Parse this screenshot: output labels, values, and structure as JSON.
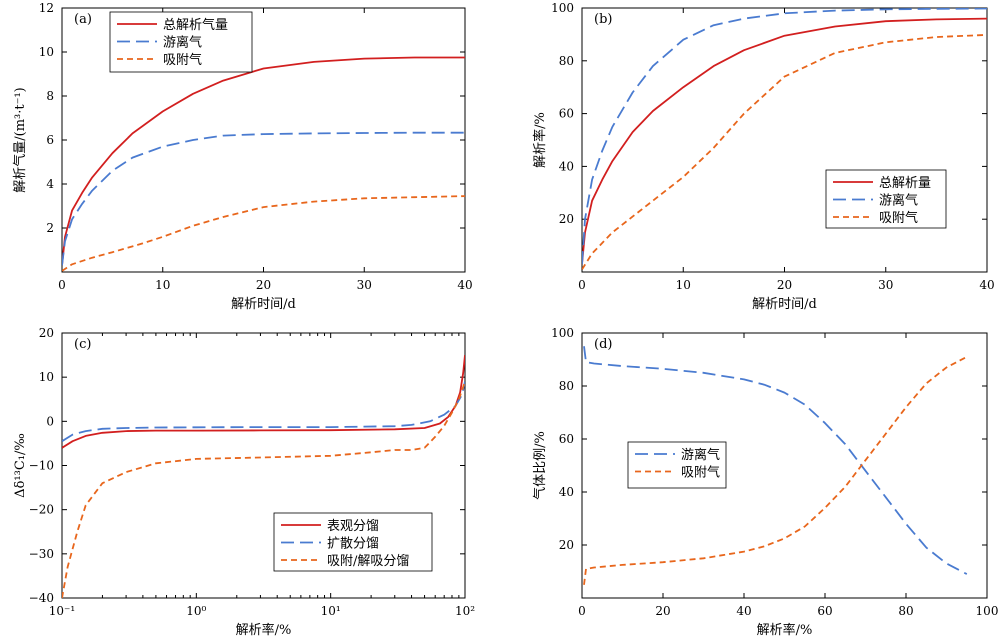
{
  "chart_data": [
    {
      "type": "line",
      "panel_label": "(a)",
      "xlabel": "解析时间/d",
      "ylabel": "解析气量/(m³·t⁻¹)",
      "xlim": [
        0,
        40
      ],
      "ylim": [
        0,
        12
      ],
      "xticks": [
        0,
        10,
        20,
        30,
        40
      ],
      "yticks": [
        2,
        4,
        6,
        8,
        10,
        12
      ],
      "legend": "top-left",
      "series": [
        {
          "name": "总解析气量",
          "color": "#d21f1f",
          "dash": "solid",
          "x": [
            0,
            0.3,
            1,
            2,
            3,
            5,
            7,
            10,
            13,
            16,
            20,
            25,
            30,
            35,
            40
          ],
          "y": [
            0.3,
            1.6,
            2.8,
            3.6,
            4.3,
            5.4,
            6.3,
            7.3,
            8.1,
            8.7,
            9.25,
            9.55,
            9.7,
            9.75,
            9.75
          ]
        },
        {
          "name": "游离气",
          "color": "#4a7bd0",
          "dash": "long",
          "x": [
            0,
            0.3,
            1,
            2,
            3,
            5,
            7,
            10,
            13,
            16,
            20,
            25,
            30,
            35,
            40
          ],
          "y": [
            0.3,
            1.4,
            2.4,
            3.1,
            3.7,
            4.6,
            5.2,
            5.7,
            6.0,
            6.2,
            6.27,
            6.3,
            6.32,
            6.33,
            6.33
          ]
        },
        {
          "name": "吸附气",
          "color": "#e8661c",
          "dash": "short",
          "x": [
            0,
            1,
            3,
            5,
            8,
            10,
            13,
            16,
            20,
            25,
            30,
            35,
            40
          ],
          "y": [
            0.05,
            0.35,
            0.65,
            0.9,
            1.3,
            1.6,
            2.1,
            2.5,
            2.95,
            3.2,
            3.35,
            3.4,
            3.45
          ]
        }
      ]
    },
    {
      "type": "line",
      "panel_label": "(b)",
      "xlabel": "解析时间/d",
      "ylabel": "解析率/%",
      "xlim": [
        0,
        40
      ],
      "ylim": [
        0,
        100
      ],
      "xticks": [
        0,
        10,
        20,
        30,
        40
      ],
      "yticks": [
        20,
        40,
        60,
        80,
        100
      ],
      "legend": "middle-right",
      "series": [
        {
          "name": "总解析量",
          "color": "#d21f1f",
          "dash": "solid",
          "x": [
            0,
            0.3,
            1,
            2,
            3,
            5,
            7,
            10,
            13,
            16,
            20,
            25,
            30,
            35,
            40
          ],
          "y": [
            3,
            15,
            27,
            35,
            42,
            53,
            61,
            70,
            78,
            84,
            89.5,
            93,
            95,
            95.7,
            96
          ]
        },
        {
          "name": "游离气",
          "color": "#4a7bd0",
          "dash": "long",
          "x": [
            0,
            0.3,
            1,
            2,
            3,
            5,
            7,
            10,
            13,
            16,
            20,
            25,
            30,
            35,
            40
          ],
          "y": [
            3,
            20,
            35,
            46,
            55,
            68,
            78,
            88,
            93.5,
            96,
            98,
            99,
            99.5,
            99.7,
            99.8
          ]
        },
        {
          "name": "吸附气",
          "color": "#e8661c",
          "dash": "short",
          "x": [
            0,
            1,
            3,
            5,
            8,
            10,
            13,
            16,
            20,
            25,
            30,
            35,
            40
          ],
          "y": [
            1,
            7,
            15,
            21,
            30,
            36,
            47,
            60,
            74,
            83,
            87,
            89,
            89.8
          ]
        }
      ]
    },
    {
      "type": "line",
      "panel_label": "(c)",
      "xlabel": "解析率/%",
      "ylabel": "Δδ¹³C₁/‰",
      "xscale": "log",
      "xlim": [
        0.1,
        100
      ],
      "ylim": [
        -40,
        20
      ],
      "xtick_labels": [
        "10⁻¹",
        "10⁰",
        "10¹",
        "10²"
      ],
      "yticks": [
        -40,
        -30,
        -20,
        -10,
        0,
        10,
        20
      ],
      "legend": "bottom-right",
      "series": [
        {
          "name": "表观分馏",
          "color": "#d21f1f",
          "dash": "solid",
          "x": [
            0.1,
            0.12,
            0.15,
            0.2,
            0.3,
            0.5,
            1,
            3,
            10,
            30,
            50,
            65,
            75,
            85,
            92,
            97,
            100
          ],
          "y": [
            -6,
            -4.5,
            -3.3,
            -2.6,
            -2.2,
            -2.1,
            -2.1,
            -2.05,
            -2.0,
            -1.8,
            -1.5,
            -0.5,
            1,
            3.5,
            6.5,
            11,
            15
          ]
        },
        {
          "name": "扩散分馏",
          "color": "#4a7bd0",
          "dash": "long",
          "x": [
            0.1,
            0.12,
            0.15,
            0.2,
            0.3,
            0.5,
            1,
            3,
            10,
            30,
            40,
            55,
            70,
            85,
            95,
            100
          ],
          "y": [
            -4.5,
            -3,
            -2.2,
            -1.7,
            -1.5,
            -1.4,
            -1.35,
            -1.3,
            -1.3,
            -1.1,
            -0.8,
            0,
            1.5,
            3.5,
            6,
            9
          ]
        },
        {
          "name": "吸附/解吸分馏",
          "color": "#e8661c",
          "dash": "short",
          "x": [
            0.1,
            0.11,
            0.13,
            0.15,
            0.2,
            0.3,
            0.5,
            1,
            3,
            10,
            20,
            30,
            40,
            50,
            60,
            70,
            80,
            90,
            100
          ],
          "y": [
            -40,
            -33,
            -25,
            -19,
            -14,
            -11.5,
            -9.5,
            -8.5,
            -8.2,
            -7.8,
            -7.0,
            -6.5,
            -6.5,
            -6.0,
            -3.5,
            -1,
            2,
            5,
            9
          ]
        }
      ]
    },
    {
      "type": "line",
      "panel_label": "(d)",
      "xlabel": "解析率/%",
      "ylabel": "气体比例/%",
      "xlim": [
        0,
        100
      ],
      "ylim": [
        0,
        100
      ],
      "xticks": [
        0,
        20,
        40,
        60,
        80,
        100
      ],
      "yticks": [
        20,
        40,
        60,
        80,
        100
      ],
      "legend": "middle-left",
      "series": [
        {
          "name": "游离气",
          "color": "#4a7bd0",
          "dash": "long",
          "x": [
            0.5,
            1,
            3,
            10,
            20,
            30,
            40,
            45,
            50,
            55,
            60,
            65,
            70,
            75,
            80,
            85,
            90,
            95
          ],
          "y": [
            95,
            89,
            88.5,
            87.5,
            86.5,
            85,
            82.5,
            80.5,
            77.5,
            73,
            66,
            58,
            48,
            38,
            28,
            19,
            13,
            9
          ]
        },
        {
          "name": "吸附气",
          "color": "#e8661c",
          "dash": "short",
          "x": [
            0.5,
            1,
            3,
            10,
            20,
            30,
            40,
            45,
            50,
            55,
            60,
            65,
            70,
            75,
            80,
            85,
            90,
            95
          ],
          "y": [
            5,
            11,
            11.5,
            12.5,
            13.5,
            15,
            17.5,
            19.5,
            22.5,
            27,
            34,
            42,
            52,
            62,
            72,
            81,
            87,
            91
          ]
        }
      ]
    }
  ]
}
